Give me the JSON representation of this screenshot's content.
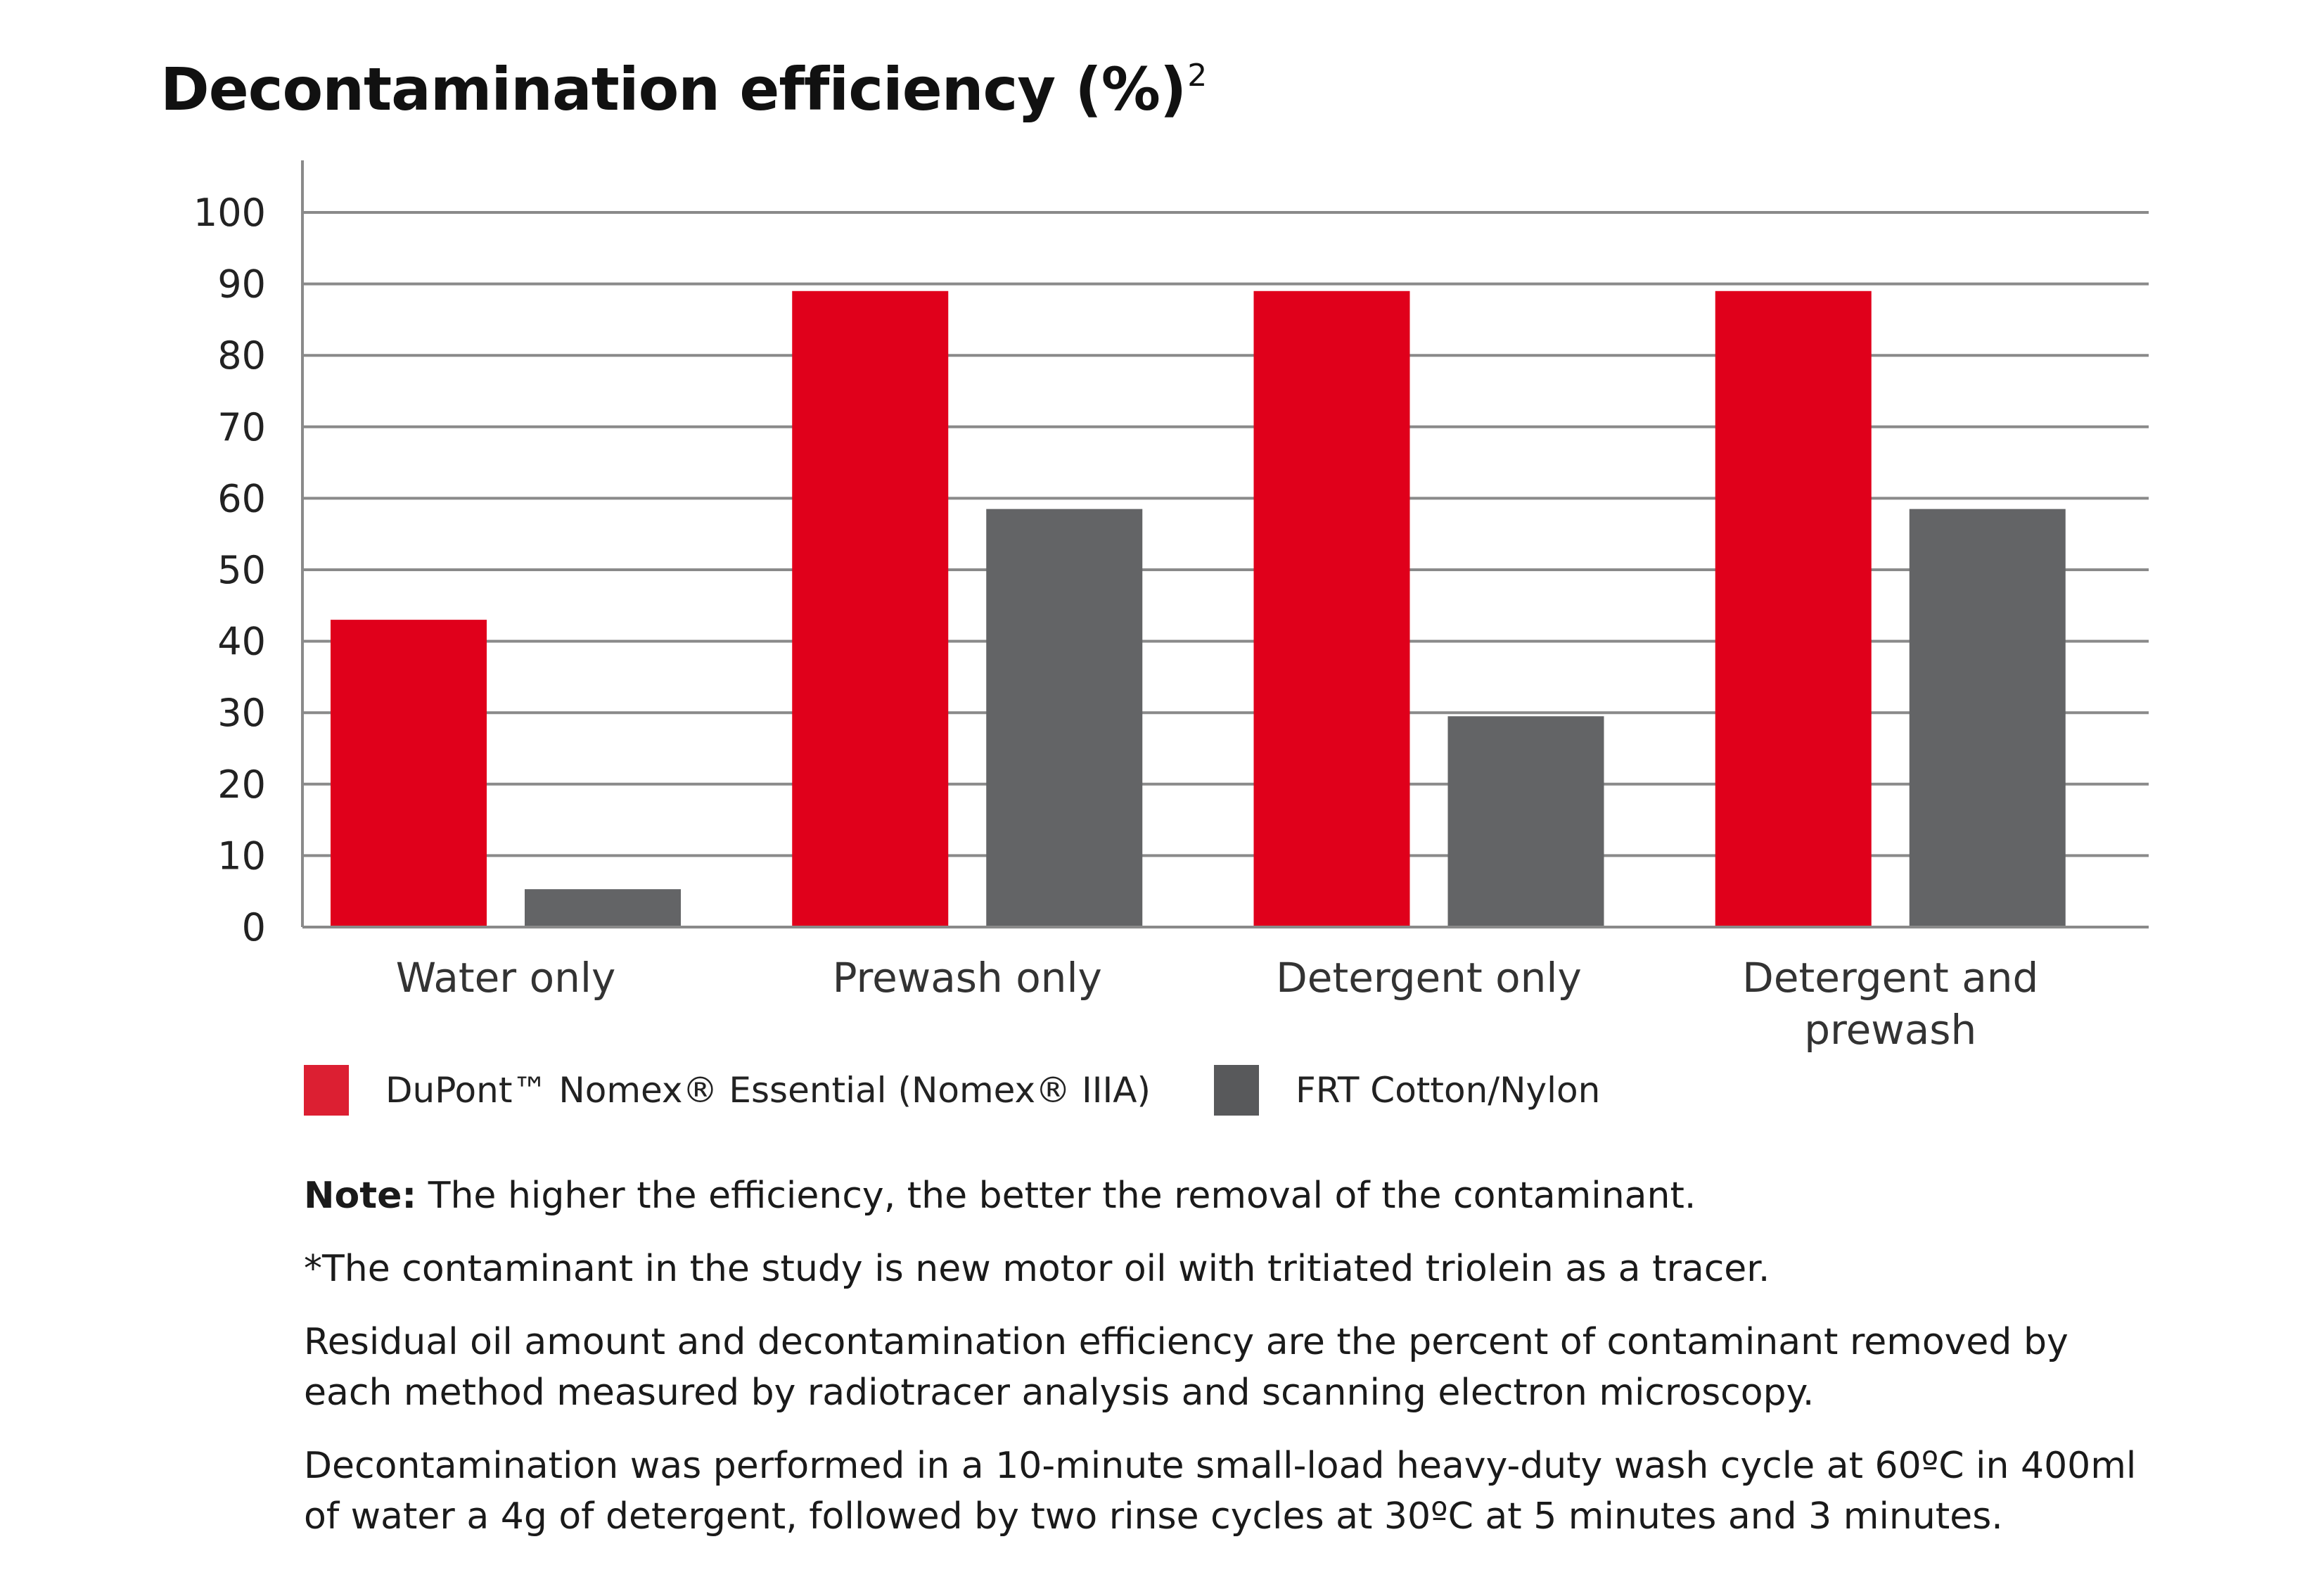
{
  "title": "Decontamination efficiency (%)",
  "title_superscript": "2",
  "colors": {
    "nomex": "#e0001b",
    "frt": "#636466",
    "legend_nomex": "#dc1f32",
    "legend_frt": "#58595b",
    "grid": "#8a8a8a"
  },
  "legend": [
    {
      "label": "DuPont™ Nomex® Essential (Nomex® IIIA)",
      "color": "#dc1f32"
    },
    {
      "label": "FRT Cotton/Nylon",
      "color": "#58595b"
    }
  ],
  "notes": {
    "note_label": "Note:",
    "note_text": " The higher the efficiency, the better the removal of the contaminant.",
    "p2": "*The contaminant in the study is new motor oil with tritiated triolein as a tracer.",
    "p3_line1": "Residual oil amount and decontamination efficiency are the percent of contaminant removed by",
    "p3_line2": "each method measured by radiotracer analysis and scanning electron microscopy.",
    "p4_line1": "Decontamination was performed in a 10-minute small-load heavy-duty wash cycle at 60ºC in 400ml",
    "p4_line2": "of water a 4g of detergent, followed by two rinse cycles at 30ºC at 5 minutes and 3 minutes."
  },
  "chart_data": {
    "type": "bar",
    "title": "Decontamination efficiency (%)²",
    "xlabel": "",
    "ylabel": "",
    "ylim": [
      0,
      100
    ],
    "yticks": [
      0,
      10,
      20,
      30,
      40,
      50,
      60,
      70,
      80,
      90,
      100
    ],
    "grid": true,
    "legend_position": "bottom-left",
    "categories": [
      [
        "Water only"
      ],
      [
        "Prewash only"
      ],
      [
        "Detergent only"
      ],
      [
        "Detergent and",
        "prewash"
      ]
    ],
    "series": [
      {
        "name": "DuPont™ Nomex® Essential (Nomex® IIIA)",
        "color": "#e0001b",
        "values": [
          43,
          89,
          89,
          89
        ]
      },
      {
        "name": "FRT Cotton/Nylon",
        "color": "#636466",
        "values": [
          5.3,
          58.5,
          29.5,
          58.5
        ]
      }
    ]
  }
}
